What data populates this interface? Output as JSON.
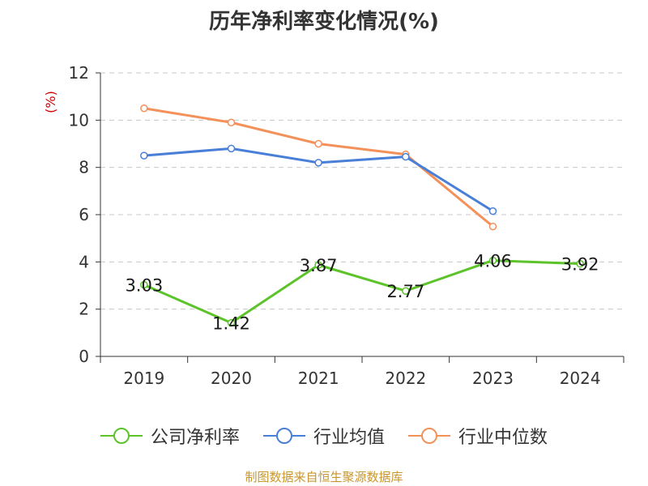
{
  "chart_data": {
    "type": "line",
    "title": "历年净利率变化情况(%)",
    "ylabel": "(%)",
    "xlabel": "",
    "categories": [
      "2019",
      "2020",
      "2021",
      "2022",
      "2023",
      "2024"
    ],
    "ylim": [
      0,
      12
    ],
    "yticks": [
      "0",
      "2",
      "4",
      "6",
      "8",
      "10",
      "12"
    ],
    "grid": "horizontal dashed",
    "legend_position": "bottom",
    "series": [
      {
        "name": "公司净利率",
        "color": "#5cc42a",
        "values": [
          3.03,
          1.42,
          3.87,
          2.77,
          4.06,
          3.92
        ],
        "labels": [
          "3.03",
          "1.42",
          "3.87",
          "2.77",
          "4.06",
          "3.92"
        ]
      },
      {
        "name": "行业均值",
        "color": "#4a7fd8",
        "values": [
          8.5,
          8.8,
          8.2,
          8.45,
          6.15,
          null
        ]
      },
      {
        "name": "行业中位数",
        "color": "#f4915a",
        "values": [
          10.5,
          9.9,
          9.0,
          8.55,
          5.5,
          null
        ]
      }
    ]
  },
  "source_text": "制图数据来自恒生聚源数据库"
}
